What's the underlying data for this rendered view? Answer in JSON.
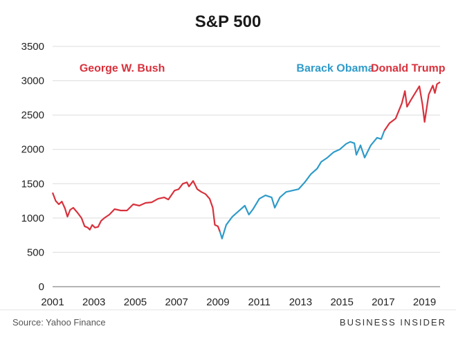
{
  "title": "S&P 500",
  "source": "Source: Yahoo Finance",
  "brand": "BUSINESS INSIDER",
  "colors": {
    "red": "#d8313c",
    "blue": "#2e9bc9",
    "grid": "#dcdcdc"
  },
  "chart_data": {
    "type": "line",
    "title": "S&P 500",
    "xlabel": "",
    "ylabel": "",
    "xlim": [
      2001,
      2019.75
    ],
    "ylim": [
      0,
      3500
    ],
    "yticks": [
      0,
      500,
      1000,
      1500,
      2000,
      2500,
      3000,
      3500
    ],
    "xticks": [
      2001,
      2003,
      2005,
      2007,
      2009,
      2011,
      2013,
      2015,
      2017,
      2019
    ],
    "grid": "horizontal",
    "series": [
      {
        "name": "George W. Bush",
        "color": "#d8313c",
        "x": [
          2001.0,
          2001.15,
          2001.3,
          2001.45,
          2001.6,
          2001.72,
          2001.85,
          2002.0,
          2002.2,
          2002.4,
          2002.55,
          2002.7,
          2002.8,
          2002.92,
          2003.05,
          2003.2,
          2003.35,
          2003.5,
          2003.75,
          2004.0,
          2004.3,
          2004.6,
          2004.9,
          2005.2,
          2005.5,
          2005.8,
          2006.1,
          2006.4,
          2006.6,
          2006.9,
          2007.1,
          2007.3,
          2007.5,
          2007.6,
          2007.8,
          2008.0,
          2008.2,
          2008.4,
          2008.6,
          2008.75,
          2008.85,
          2009.0,
          2009.1
        ],
        "y": [
          1370,
          1250,
          1200,
          1240,
          1140,
          1020,
          1120,
          1150,
          1080,
          1000,
          880,
          860,
          830,
          900,
          860,
          870,
          960,
          1000,
          1050,
          1130,
          1110,
          1110,
          1200,
          1180,
          1220,
          1230,
          1280,
          1300,
          1270,
          1400,
          1420,
          1500,
          1520,
          1460,
          1540,
          1420,
          1380,
          1350,
          1280,
          1150,
          900,
          880,
          800
        ]
      },
      {
        "name": "Barack Obama",
        "color": "#2e9bc9",
        "x": [
          2009.1,
          2009.2,
          2009.4,
          2009.7,
          2010.0,
          2010.3,
          2010.5,
          2010.7,
          2011.0,
          2011.3,
          2011.6,
          2011.75,
          2012.0,
          2012.3,
          2012.6,
          2012.9,
          2013.2,
          2013.5,
          2013.8,
          2014.0,
          2014.3,
          2014.6,
          2014.9,
          2015.2,
          2015.4,
          2015.6,
          2015.7,
          2015.9,
          2016.1,
          2016.4,
          2016.7,
          2016.9,
          2017.05
        ],
        "y": [
          800,
          700,
          900,
          1020,
          1100,
          1180,
          1050,
          1130,
          1280,
          1330,
          1300,
          1150,
          1300,
          1380,
          1400,
          1420,
          1520,
          1640,
          1720,
          1820,
          1880,
          1960,
          2000,
          2080,
          2110,
          2090,
          1920,
          2060,
          1880,
          2060,
          2170,
          2150,
          2270
        ]
      },
      {
        "name": "Donald Trump",
        "color": "#d8313c",
        "x": [
          2017.05,
          2017.3,
          2017.6,
          2017.9,
          2018.05,
          2018.15,
          2018.3,
          2018.5,
          2018.75,
          2018.9,
          2019.0,
          2019.2,
          2019.4,
          2019.5,
          2019.6,
          2019.75
        ],
        "y": [
          2270,
          2380,
          2450,
          2670,
          2850,
          2620,
          2700,
          2800,
          2920,
          2650,
          2400,
          2800,
          2930,
          2820,
          2950,
          2980
        ]
      }
    ],
    "annotations": [
      {
        "text": "George W. Bush",
        "x": 2002.3,
        "y": 3130,
        "color": "#d8313c"
      },
      {
        "text": "Barack Obama",
        "x": 2012.8,
        "y": 3130,
        "color": "#2e9bc9"
      },
      {
        "text": "Donald Trump",
        "x": 2016.4,
        "y": 3130,
        "color": "#d8313c"
      }
    ]
  }
}
